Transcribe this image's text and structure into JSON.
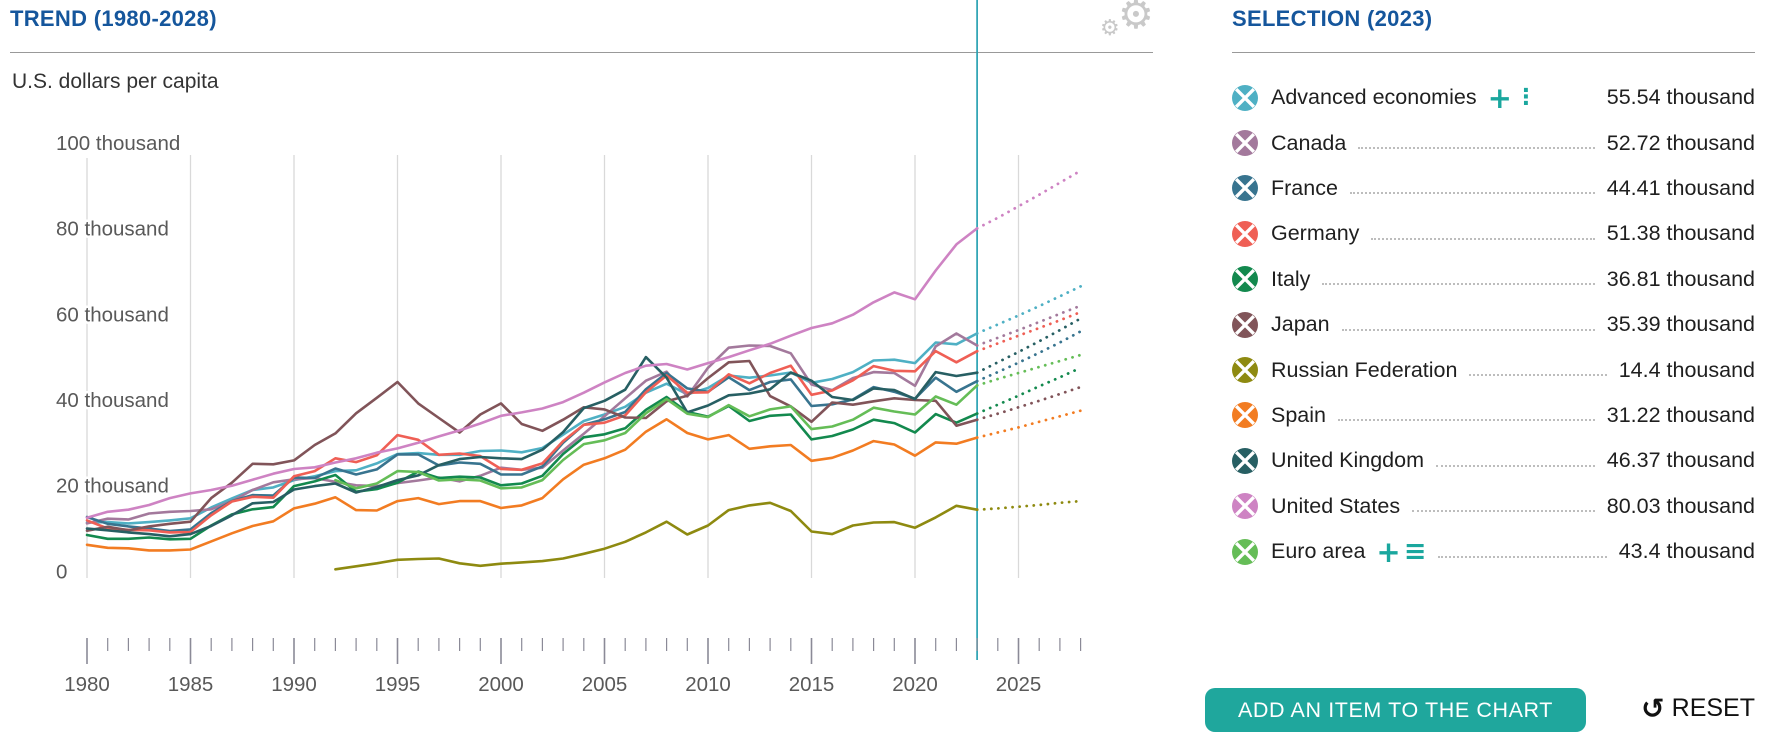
{
  "trend": {
    "title": "TREND (1980-2028)",
    "unit_label": "U.S. dollars per capita"
  },
  "selection": {
    "title": "SELECTION (2023)",
    "items": [
      {
        "name": "Advanced economies",
        "value": "55.54 thousand",
        "color": "#4fb0c4",
        "leader": false,
        "extra_icons": [
          "plus",
          "kebab"
        ]
      },
      {
        "name": "Canada",
        "value": "52.72 thousand",
        "color": "#a3799c",
        "leader": true,
        "extra_icons": []
      },
      {
        "name": "France",
        "value": "44.41 thousand",
        "color": "#38748f",
        "leader": true,
        "extra_icons": []
      },
      {
        "name": "Germany",
        "value": "51.38 thousand",
        "color": "#ef5f55",
        "leader": true,
        "extra_icons": []
      },
      {
        "name": "Italy",
        "value": "36.81 thousand",
        "color": "#13894e",
        "leader": true,
        "extra_icons": []
      },
      {
        "name": "Japan",
        "value": "35.39 thousand",
        "color": "#815459",
        "leader": true,
        "extra_icons": []
      },
      {
        "name": "Russian Federation",
        "value": "14.4 thousand",
        "color": "#8e8a10",
        "leader": true,
        "extra_icons": []
      },
      {
        "name": "Spain",
        "value": "31.22 thousand",
        "color": "#f27c22",
        "leader": true,
        "extra_icons": []
      },
      {
        "name": "United Kingdom",
        "value": "46.37 thousand",
        "color": "#275f63",
        "leader": true,
        "extra_icons": []
      },
      {
        "name": "United States",
        "value": "80.03 thousand",
        "color": "#ce83c3",
        "leader": true,
        "extra_icons": []
      },
      {
        "name": "Euro area",
        "value": "43.4 thousand",
        "color": "#65bd57",
        "leader": true,
        "extra_icons": [
          "plus",
          "list"
        ]
      }
    ]
  },
  "actions": {
    "add_button_label": "ADD AN ITEM TO THE CHART",
    "reset_label": "RESET",
    "reset_icon": "↺"
  },
  "icons": {
    "settings_large": "⚙",
    "settings_small": "⚙"
  },
  "colors": {
    "header_blue": "#15569c",
    "accent_teal": "#1fa79d",
    "current_year_line": "#2aa2b2",
    "gridline": "#d9d9d9",
    "tick": "#8b8a97",
    "tick_label": "#595959"
  },
  "chart_data": {
    "type": "line",
    "title": "TREND (1980-2028)",
    "ylabel": "U.S. dollars per capita",
    "x_range": [
      1980,
      2028
    ],
    "ylim": [
      0,
      100
    ],
    "grid": "vertical-major-years",
    "legend_position": "right-panel",
    "current_year": 2023,
    "projection_style": "dotted",
    "y_ticks": [
      {
        "v": 100,
        "label": "100 thousand"
      },
      {
        "v": 80,
        "label": "80 thousand"
      },
      {
        "v": 60,
        "label": "60 thousand"
      },
      {
        "v": 40,
        "label": "40 thousand"
      },
      {
        "v": 20,
        "label": "20 thousand"
      },
      {
        "v": 0,
        "label": "0"
      }
    ],
    "x_major_ticks": [
      1980,
      1985,
      1990,
      1995,
      2000,
      2005,
      2010,
      2015,
      2020,
      2025
    ],
    "series": [
      {
        "name": "Advanced economies",
        "color": "#4fb0c4",
        "start_year": 1980,
        "values": [
          11.4,
          11.5,
          11.2,
          11.5,
          11.9,
          12.4,
          14.9,
          17.0,
          19.0,
          19.6,
          21.3,
          22.2,
          23.4,
          23.6,
          25.2,
          27.4,
          27.6,
          27.2,
          27.2,
          28.1,
          28.2,
          27.8,
          28.8,
          31.9,
          35.1,
          36.6,
          38.4,
          41.7,
          43.8,
          41.3,
          42.8,
          45.7,
          45.2,
          45.7,
          46.4,
          44.0,
          44.9,
          46.5,
          49.2,
          49.4,
          48.6,
          53.4,
          53.0,
          55.54
        ],
        "projections": [
          57.6,
          59.7,
          61.9,
          64.2,
          66.5
        ]
      },
      {
        "name": "Canada",
        "color": "#a3799c",
        "start_year": 1980,
        "values": [
          11.2,
          12.3,
          12.1,
          13.5,
          13.9,
          14.1,
          14.5,
          16.4,
          19.0,
          20.8,
          21.5,
          21.8,
          20.9,
          20.1,
          19.9,
          20.6,
          21.2,
          21.9,
          21.0,
          22.3,
          24.2,
          23.7,
          24.2,
          28.2,
          32.1,
          36.2,
          40.4,
          44.5,
          46.6,
          40.8,
          47.5,
          52.2,
          52.7,
          52.6,
          50.9,
          43.6,
          42.3,
          45.1,
          46.5,
          46.3,
          43.3,
          52.5,
          55.5,
          52.72
        ],
        "projections": [
          54.5,
          56.3,
          58.2,
          60.1,
          62.0
        ]
      },
      {
        "name": "France",
        "color": "#38748f",
        "start_year": 1980,
        "values": [
          12.7,
          11.1,
          10.5,
          10.0,
          9.4,
          9.8,
          13.6,
          16.4,
          17.8,
          17.7,
          21.9,
          21.8,
          24.0,
          22.6,
          23.8,
          27.3,
          27.3,
          24.7,
          25.4,
          25.1,
          22.6,
          22.6,
          24.5,
          30.0,
          34.2,
          35.5,
          37.2,
          42.5,
          46.3,
          42.7,
          41.9,
          45.3,
          42.3,
          44.2,
          44.8,
          38.6,
          39.0,
          40.1,
          43.0,
          41.9,
          40.3,
          45.2,
          41.9,
          44.41
        ],
        "projections": [
          46.5,
          48.7,
          51.0,
          53.4,
          56.0
        ]
      },
      {
        "name": "Germany",
        "color": "#ef5f55",
        "start_year": 1980,
        "values": [
          11.9,
          10.0,
          9.7,
          9.6,
          9.1,
          9.2,
          13.1,
          16.3,
          17.4,
          17.2,
          22.2,
          23.4,
          26.4,
          25.5,
          27.1,
          31.8,
          30.7,
          27.2,
          27.5,
          26.9,
          23.9,
          23.7,
          25.2,
          30.4,
          34.2,
          34.7,
          36.4,
          41.8,
          45.7,
          41.7,
          41.8,
          46.0,
          43.9,
          46.3,
          48.0,
          41.2,
          42.2,
          44.6,
          47.9,
          46.8,
          46.7,
          51.4,
          48.8,
          51.38
        ],
        "projections": [
          53.2,
          55.0,
          56.8,
          58.6,
          60.5
        ]
      },
      {
        "name": "Italy",
        "color": "#13894e",
        "start_year": 1980,
        "values": [
          8.5,
          7.6,
          7.6,
          7.9,
          7.5,
          7.6,
          10.7,
          13.3,
          14.5,
          15.0,
          19.9,
          21.0,
          22.5,
          18.6,
          19.2,
          20.7,
          23.3,
          21.8,
          22.1,
          21.9,
          20.1,
          20.5,
          22.3,
          27.4,
          31.3,
          32.0,
          33.4,
          37.7,
          40.7,
          37.2,
          36.1,
          38.6,
          35.1,
          36.3,
          36.6,
          30.8,
          31.6,
          33.1,
          35.4,
          34.6,
          32.4,
          36.7,
          34.7,
          36.81
        ],
        "projections": [
          38.9,
          41.0,
          43.2,
          45.3,
          47.5
        ]
      },
      {
        "name": "Japan",
        "color": "#815459",
        "start_year": 1980,
        "values": [
          9.5,
          10.4,
          9.6,
          10.5,
          11.1,
          11.6,
          17.1,
          20.7,
          25.1,
          25.0,
          25.9,
          29.5,
          32.2,
          36.9,
          40.5,
          44.2,
          39.2,
          35.8,
          32.4,
          36.6,
          39.2,
          34.4,
          32.8,
          35.4,
          38.3,
          37.8,
          35.9,
          35.8,
          39.7,
          41.0,
          45.1,
          48.8,
          49.1,
          40.9,
          38.5,
          34.9,
          39.4,
          38.9,
          39.7,
          40.4,
          40.0,
          39.8,
          34.0,
          35.39
        ],
        "projections": [
          36.8,
          38.3,
          39.8,
          41.4,
          43.0
        ]
      },
      {
        "name": "Russian Federation",
        "color": "#8e8a10",
        "start_year": 1992,
        "values": [
          0.5,
          1.2,
          1.9,
          2.7,
          2.9,
          3.0,
          1.9,
          1.3,
          1.8,
          2.1,
          2.4,
          3.0,
          4.1,
          5.3,
          6.9,
          9.1,
          11.6,
          8.6,
          10.7,
          14.3,
          15.4,
          16.0,
          14.1,
          9.3,
          8.7,
          10.7,
          11.4,
          11.5,
          10.2,
          12.6,
          15.3,
          14.4
        ],
        "projections": [
          14.7,
          15.1,
          15.5,
          16.0,
          16.4
        ]
      },
      {
        "name": "Spain",
        "color": "#f27c22",
        "start_year": 1980,
        "values": [
          6.2,
          5.5,
          5.4,
          4.9,
          4.9,
          5.1,
          7.0,
          8.9,
          10.6,
          11.7,
          14.7,
          15.8,
          17.3,
          14.3,
          14.2,
          16.4,
          17.1,
          15.7,
          16.4,
          16.4,
          14.8,
          15.4,
          17.1,
          21.5,
          24.9,
          26.4,
          28.4,
          32.6,
          35.5,
          32.3,
          30.8,
          31.8,
          28.6,
          29.2,
          29.5,
          25.8,
          26.5,
          28.2,
          30.4,
          29.6,
          27.0,
          30.1,
          29.8,
          31.22
        ],
        "projections": [
          32.4,
          33.6,
          34.9,
          36.2,
          37.5
        ]
      },
      {
        "name": "United Kingdom",
        "color": "#275f63",
        "start_year": 1980,
        "values": [
          10.0,
          9.6,
          9.1,
          8.7,
          8.2,
          8.7,
          10.6,
          13.1,
          15.9,
          16.2,
          19.1,
          19.9,
          20.5,
          18.4,
          19.7,
          21.3,
          22.4,
          24.8,
          26.2,
          26.7,
          26.4,
          26.2,
          28.4,
          32.5,
          38.1,
          39.8,
          42.4,
          50.0,
          45.2,
          37.1,
          38.7,
          41.1,
          41.5,
          42.5,
          46.4,
          44.5,
          40.7,
          40.0,
          42.7,
          42.3,
          40.2,
          46.5,
          45.6,
          46.37
        ],
        "projections": [
          48.8,
          51.2,
          53.7,
          56.3,
          59.0
        ]
      },
      {
        "name": "United States",
        "color": "#ce83c3",
        "start_year": 1980,
        "values": [
          12.5,
          13.9,
          14.4,
          15.5,
          17.1,
          18.2,
          19.0,
          20.0,
          21.4,
          22.8,
          23.9,
          24.3,
          25.4,
          26.4,
          27.7,
          28.7,
          30.0,
          31.5,
          32.9,
          34.5,
          36.3,
          37.1,
          38.0,
          39.5,
          41.7,
          44.1,
          46.3,
          48.0,
          48.4,
          47.1,
          48.6,
          50.0,
          51.6,
          53.1,
          55.0,
          56.8,
          57.9,
          59.9,
          62.8,
          65.1,
          63.5,
          70.2,
          76.3,
          80.03
        ],
        "projections": [
          82.5,
          85.2,
          87.9,
          90.7,
          93.5
        ]
      },
      {
        "name": "Euro area",
        "color": "#65bd57",
        "start_year": 1992,
        "values": [
          21.3,
          19.4,
          20.5,
          23.4,
          23.2,
          21.2,
          21.5,
          21.2,
          19.4,
          19.6,
          21.3,
          26.0,
          29.7,
          30.6,
          32.3,
          36.9,
          40.2,
          36.8,
          36.0,
          38.8,
          36.2,
          37.8,
          38.5,
          33.2,
          33.8,
          35.4,
          38.2,
          37.3,
          36.6,
          40.8,
          38.9,
          43.4
        ],
        "projections": [
          44.9,
          46.3,
          47.7,
          49.1,
          50.5
        ]
      }
    ]
  }
}
